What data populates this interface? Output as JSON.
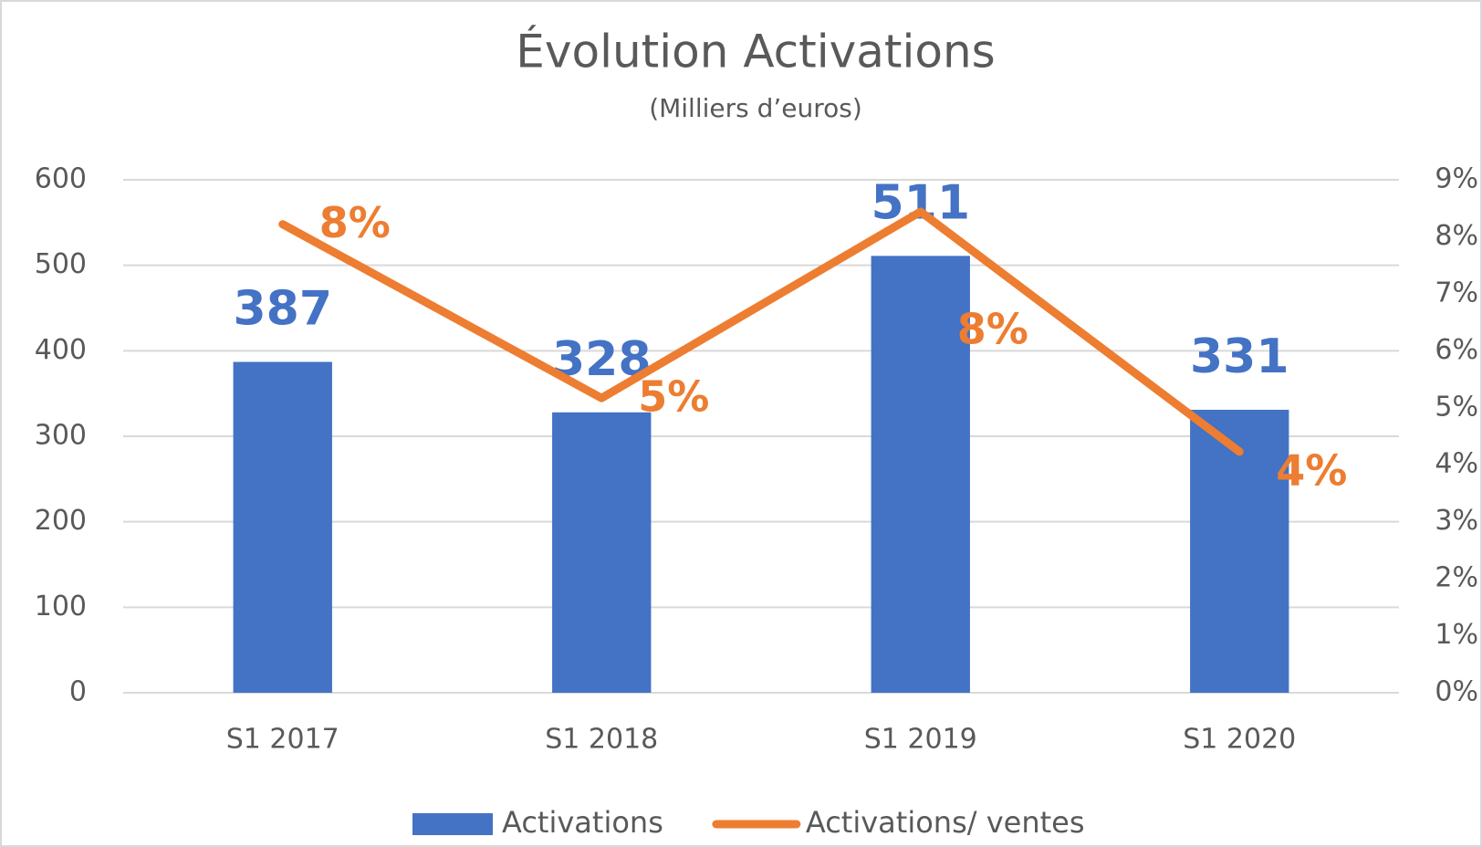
{
  "chart_data": {
    "type": "bar_line",
    "title": "Évolution Activations",
    "subtitle": "(Milliers d’euros)",
    "categories": [
      "S1 2017",
      "S1 2018",
      "S1 2019",
      "S1 2020"
    ],
    "series": [
      {
        "name": "Activations",
        "type": "bar",
        "color": "#4472c4",
        "values": [
          387,
          328,
          511,
          331
        ]
      },
      {
        "name": "Activations/ ventes",
        "type": "line",
        "axis": "y2",
        "color": "#ed7d31",
        "values": [
          8.22,
          5.17,
          8.44,
          4.23
        ],
        "value_labels": [
          "8%",
          "5%",
          "8%",
          "4%"
        ]
      }
    ],
    "ylim": [
      0,
      600
    ],
    "yticks": [
      0,
      100,
      200,
      300,
      400,
      500,
      600
    ],
    "y2lim": [
      0,
      9
    ],
    "y2ticks": [
      {
        "value": 0,
        "label": "0%"
      },
      {
        "value": 1,
        "label": "1%"
      },
      {
        "value": 2,
        "label": "2%"
      },
      {
        "value": 3,
        "label": "3%"
      },
      {
        "value": 4,
        "label": "4%"
      },
      {
        "value": 5,
        "label": "5%"
      },
      {
        "value": 6,
        "label": "6%"
      },
      {
        "value": 7,
        "label": "7%"
      },
      {
        "value": 8,
        "label": "8%"
      },
      {
        "value": 9,
        "label": "9%"
      }
    ],
    "grid": true,
    "legend": "bottom"
  }
}
